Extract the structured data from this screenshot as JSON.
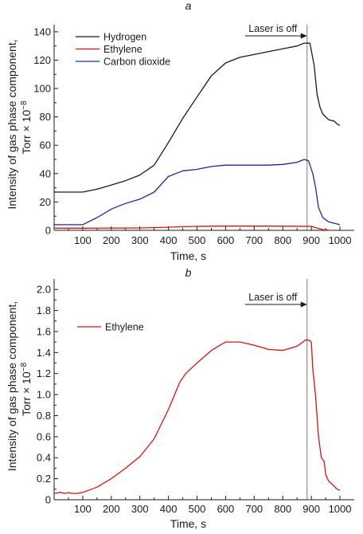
{
  "chart_data": [
    {
      "type": "line",
      "panel_label": "a",
      "xlabel": "Time, s",
      "ylabel_line1": "Intensity of gas phase component,",
      "ylabel_line2": "Torr × 10",
      "ylabel_exp": "−8",
      "xlim": [
        0,
        1050
      ],
      "ylim": [
        0,
        145
      ],
      "xticks": [
        100,
        200,
        300,
        400,
        500,
        600,
        700,
        800,
        900,
        1000
      ],
      "yticks": [
        0,
        20,
        40,
        60,
        80,
        100,
        120,
        140
      ],
      "annotation": {
        "text": "Laser is off",
        "x": 885
      },
      "legend_position": "top-left",
      "series": [
        {
          "name": "Hydrogen",
          "color": "#1a1a1a",
          "x": [
            0,
            50,
            100,
            150,
            200,
            250,
            300,
            350,
            400,
            450,
            500,
            550,
            600,
            650,
            700,
            750,
            800,
            850,
            875,
            895,
            910,
            920,
            930,
            940,
            960,
            980,
            990,
            1000
          ],
          "y": [
            27,
            27,
            27,
            29,
            32,
            35,
            39,
            46,
            62,
            79,
            94,
            109,
            118,
            122,
            124,
            126,
            128,
            130,
            132,
            132,
            116,
            96,
            87,
            82,
            78,
            77,
            75,
            74
          ]
        },
        {
          "name": "Ethylene",
          "color": "#e01010",
          "x": [
            0,
            100,
            200,
            300,
            400,
            450,
            500,
            600,
            700,
            800,
            900,
            920,
            940,
            960
          ],
          "y": [
            1.5,
            1.5,
            1.6,
            1.7,
            2.2,
            2.6,
            2.8,
            3.0,
            3.0,
            2.9,
            2.8,
            1.5,
            0.5,
            0.2
          ]
        },
        {
          "name": "Carbon dioxide",
          "color": "#1a2aa0",
          "x": [
            0,
            50,
            100,
            150,
            200,
            250,
            300,
            350,
            400,
            450,
            500,
            550,
            600,
            650,
            700,
            750,
            800,
            850,
            875,
            890,
            905,
            915,
            925,
            940,
            960,
            980,
            1000
          ],
          "y": [
            4,
            4,
            4,
            9,
            15,
            19,
            22,
            27,
            38,
            42,
            43,
            45,
            46,
            46,
            46,
            46,
            46.5,
            48,
            50,
            49,
            40,
            30,
            16,
            9,
            6,
            5,
            4
          ]
        }
      ]
    },
    {
      "type": "line",
      "panel_label": "b",
      "xlabel": "Time, s",
      "ylabel_line1": "Intensity of gas phase component,",
      "ylabel_line2": "Torr × 10",
      "ylabel_exp": "−8",
      "xlim": [
        0,
        1050
      ],
      "ylim": [
        0,
        2.1
      ],
      "xticks": [
        100,
        200,
        300,
        400,
        500,
        600,
        700,
        800,
        900,
        1000
      ],
      "yticks": [
        0,
        0.2,
        0.4,
        0.6,
        0.8,
        1.0,
        1.2,
        1.4,
        1.6,
        1.8,
        2.0
      ],
      "yticklabels": [
        "0",
        "0.2",
        "0.4",
        "0.6",
        "0.8",
        "1.0",
        "1.2",
        "1.4",
        "1.6",
        "1.8",
        "2.0"
      ],
      "annotation": {
        "text": "Laser is off",
        "x": 885
      },
      "legend_position": "top-left",
      "series": [
        {
          "name": "Ethylene",
          "color": "#e01010",
          "x": [
            0,
            20,
            40,
            50,
            60,
            80,
            100,
            150,
            200,
            250,
            300,
            350,
            400,
            440,
            460,
            500,
            550,
            600,
            650,
            700,
            750,
            800,
            850,
            880,
            890,
            900,
            905,
            915,
            925,
            935,
            945,
            950,
            960,
            975,
            990,
            1000
          ],
          "y": [
            0.06,
            0.07,
            0.06,
            0.07,
            0.06,
            0.06,
            0.07,
            0.12,
            0.2,
            0.3,
            0.41,
            0.58,
            0.86,
            1.12,
            1.2,
            1.3,
            1.42,
            1.5,
            1.5,
            1.47,
            1.43,
            1.42,
            1.46,
            1.52,
            1.52,
            1.5,
            1.25,
            0.98,
            0.6,
            0.4,
            0.36,
            0.24,
            0.18,
            0.14,
            0.1,
            0.09
          ]
        }
      ]
    }
  ]
}
